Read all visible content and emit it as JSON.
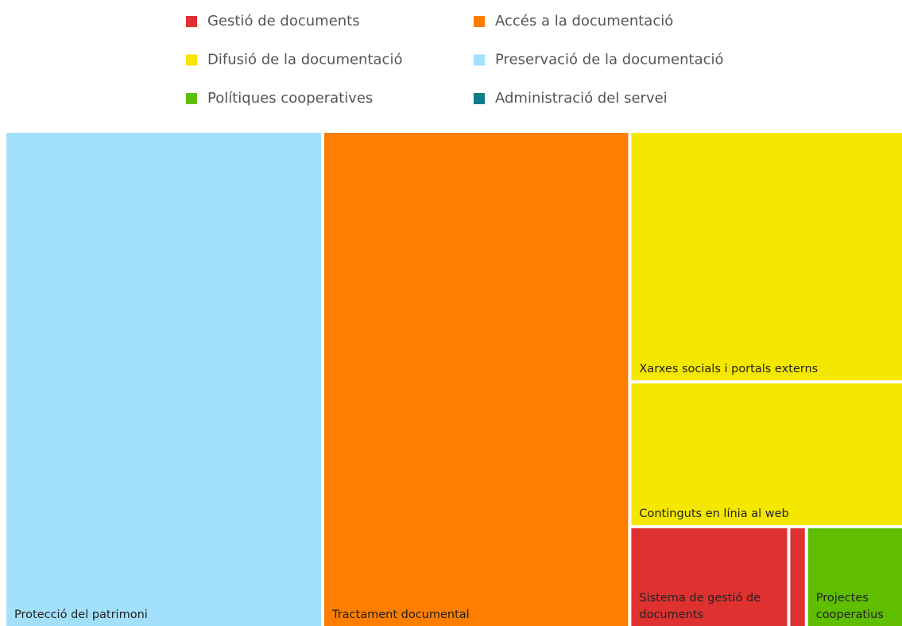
{
  "chart_data": {
    "type": "treemap",
    "series": [
      {
        "name": "Gestió de documents",
        "color": "#e03131",
        "labels": [
          "Sistema de gestió de documents",
          null
        ],
        "values": [
          3.6,
          0.4
        ]
      },
      {
        "name": "Accés a la documentació",
        "color": "#fd7e00",
        "labels": [
          "Tractament documental"
        ],
        "values": [
          34.2
        ]
      },
      {
        "name": "Difusió de la documentació",
        "color": "#f5e800",
        "labels": [
          "Xarxes socials i portals externs",
          "Continguts en línia al web"
        ],
        "values": [
          15.4,
          8.9
        ]
      },
      {
        "name": "Preservació de la documentació",
        "color": "#a2e0fc",
        "labels": [
          "Protecció del patrimoni"
        ],
        "values": [
          35.4
        ]
      },
      {
        "name": "Polítiques cooperatives",
        "color": "#5fbe00",
        "labels": [
          "Projectes cooperatius"
        ],
        "values": [
          2.2
        ]
      },
      {
        "name": "Administració del servei",
        "color": "#0e7c8c",
        "labels": [],
        "values": []
      }
    ]
  }
}
